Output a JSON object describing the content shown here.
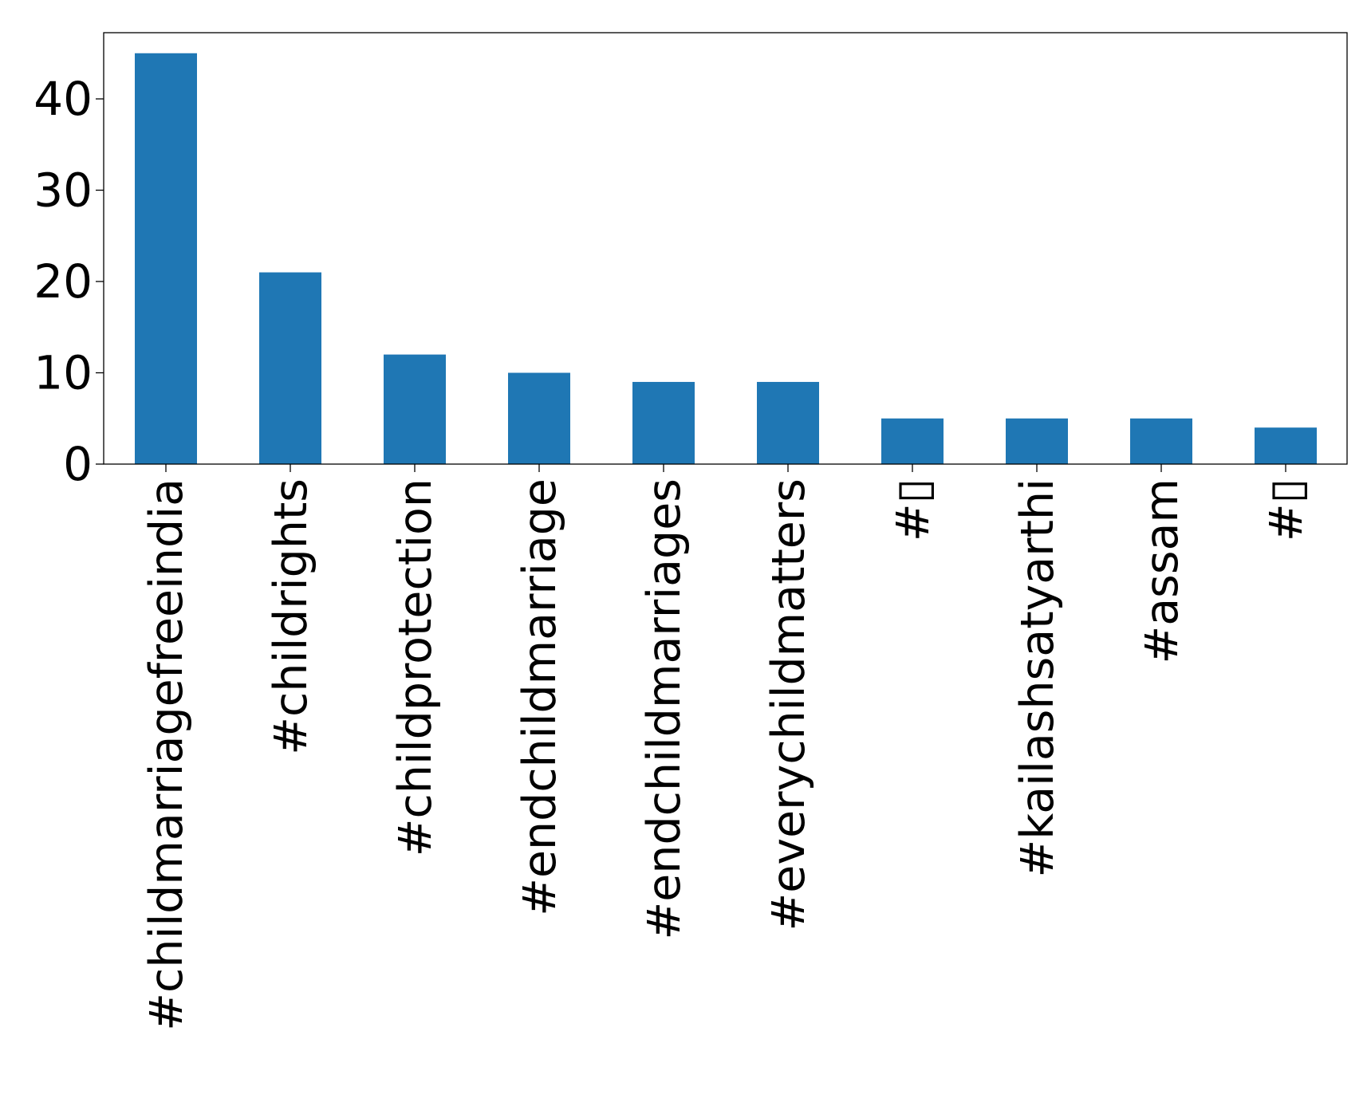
{
  "chart_data": {
    "type": "bar",
    "title": "",
    "xlabel": "",
    "ylabel": "",
    "categories": [
      "#childmarriagefreeindia",
      "#childrights",
      "#childprotection",
      "#endchildmarriage",
      "#endchildmarriages",
      "#everychildmatters",
      "#▯",
      "#kailashsatyarthi",
      "#assam",
      "#▯"
    ],
    "values": [
      45,
      21,
      12,
      10,
      9,
      9,
      5,
      5,
      5,
      4
    ],
    "ylim": [
      0,
      47.25
    ],
    "yticks": [
      0,
      10,
      20,
      30,
      40
    ],
    "grid": false,
    "bar_color": "#1f77b4"
  }
}
